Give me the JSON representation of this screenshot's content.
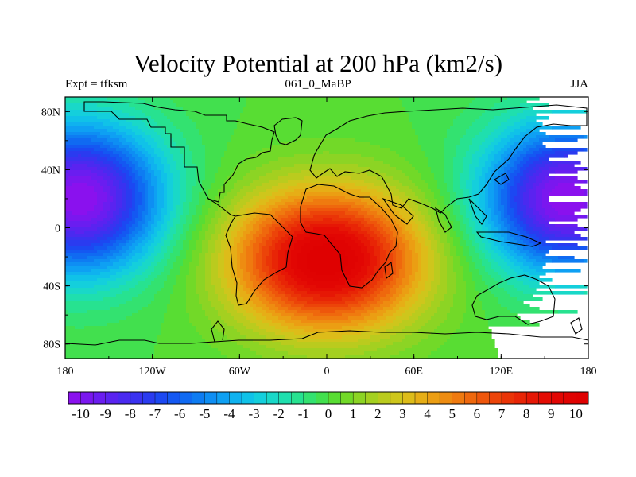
{
  "chart_data": {
    "type": "heatmap",
    "title": "Velocity Potential at 200 hPa (km2/s)",
    "left_label": "Expt = tfksm",
    "center_label": "061_0_MaBP",
    "right_label": "JJA",
    "variable": "velocity potential",
    "units": "km2/s",
    "xlim": [
      -180,
      180
    ],
    "ylim": [
      -90,
      90
    ],
    "x_ticks": [
      {
        "value": -180,
        "label": "180"
      },
      {
        "value": -120,
        "label": "120W"
      },
      {
        "value": -60,
        "label": "60W"
      },
      {
        "value": 0,
        "label": "0"
      },
      {
        "value": 60,
        "label": "60E"
      },
      {
        "value": 120,
        "label": "120E"
      },
      {
        "value": 180,
        "label": "180"
      }
    ],
    "y_ticks": [
      {
        "value": 80,
        "label": "80N"
      },
      {
        "value": 40,
        "label": "40N"
      },
      {
        "value": 0,
        "label": "0"
      },
      {
        "value": -40,
        "label": "40S"
      },
      {
        "value": -80,
        "label": "80S"
      }
    ],
    "colorbar": {
      "min": -10.5,
      "max": 10.5,
      "n_bins": 42,
      "labels": [
        -10,
        -9,
        -8,
        -7,
        -6,
        -5,
        -4,
        -3,
        -2,
        -1,
        0,
        1,
        2,
        3,
        4,
        5,
        6,
        7,
        8,
        9,
        10
      ],
      "colors": [
        "#8a11ee",
        "#7a17ef",
        "#6a1df0",
        "#5a23f0",
        "#4a2af0",
        "#3a32f0",
        "#2a3bf0",
        "#1c48f2",
        "#1458f2",
        "#106af2",
        "#0e7cf2",
        "#0e8ef3",
        "#0ea0f3",
        "#0fb2ef",
        "#10c2e8",
        "#14cfdc",
        "#19d8c8",
        "#1fdfae",
        "#27e290",
        "#33e270",
        "#42e04e",
        "#58dd33",
        "#72d928",
        "#8cd424",
        "#a4d020",
        "#bacb1e",
        "#cec61c",
        "#ddbc19",
        "#e6ae16",
        "#eb9e13",
        "#ee8c11",
        "#ef7a0f",
        "#ef680d",
        "#ee560b",
        "#ec4409",
        "#ea3407",
        "#e82506",
        "#e61705",
        "#e40c04",
        "#e20603",
        "#e00302",
        "#df0101"
      ]
    },
    "field_centers": [
      {
        "lon": -170,
        "lat": 20,
        "value": -10.5
      },
      {
        "lon": 165,
        "lat": 20,
        "value": -10.5
      },
      {
        "lon": 0,
        "lat": -22,
        "value": 10.5
      }
    ],
    "description": "Velocity potential minimum (divergent outflow) centered over the Pacific near the dateline; maximum centered over the South Atlantic between South America and Africa."
  }
}
